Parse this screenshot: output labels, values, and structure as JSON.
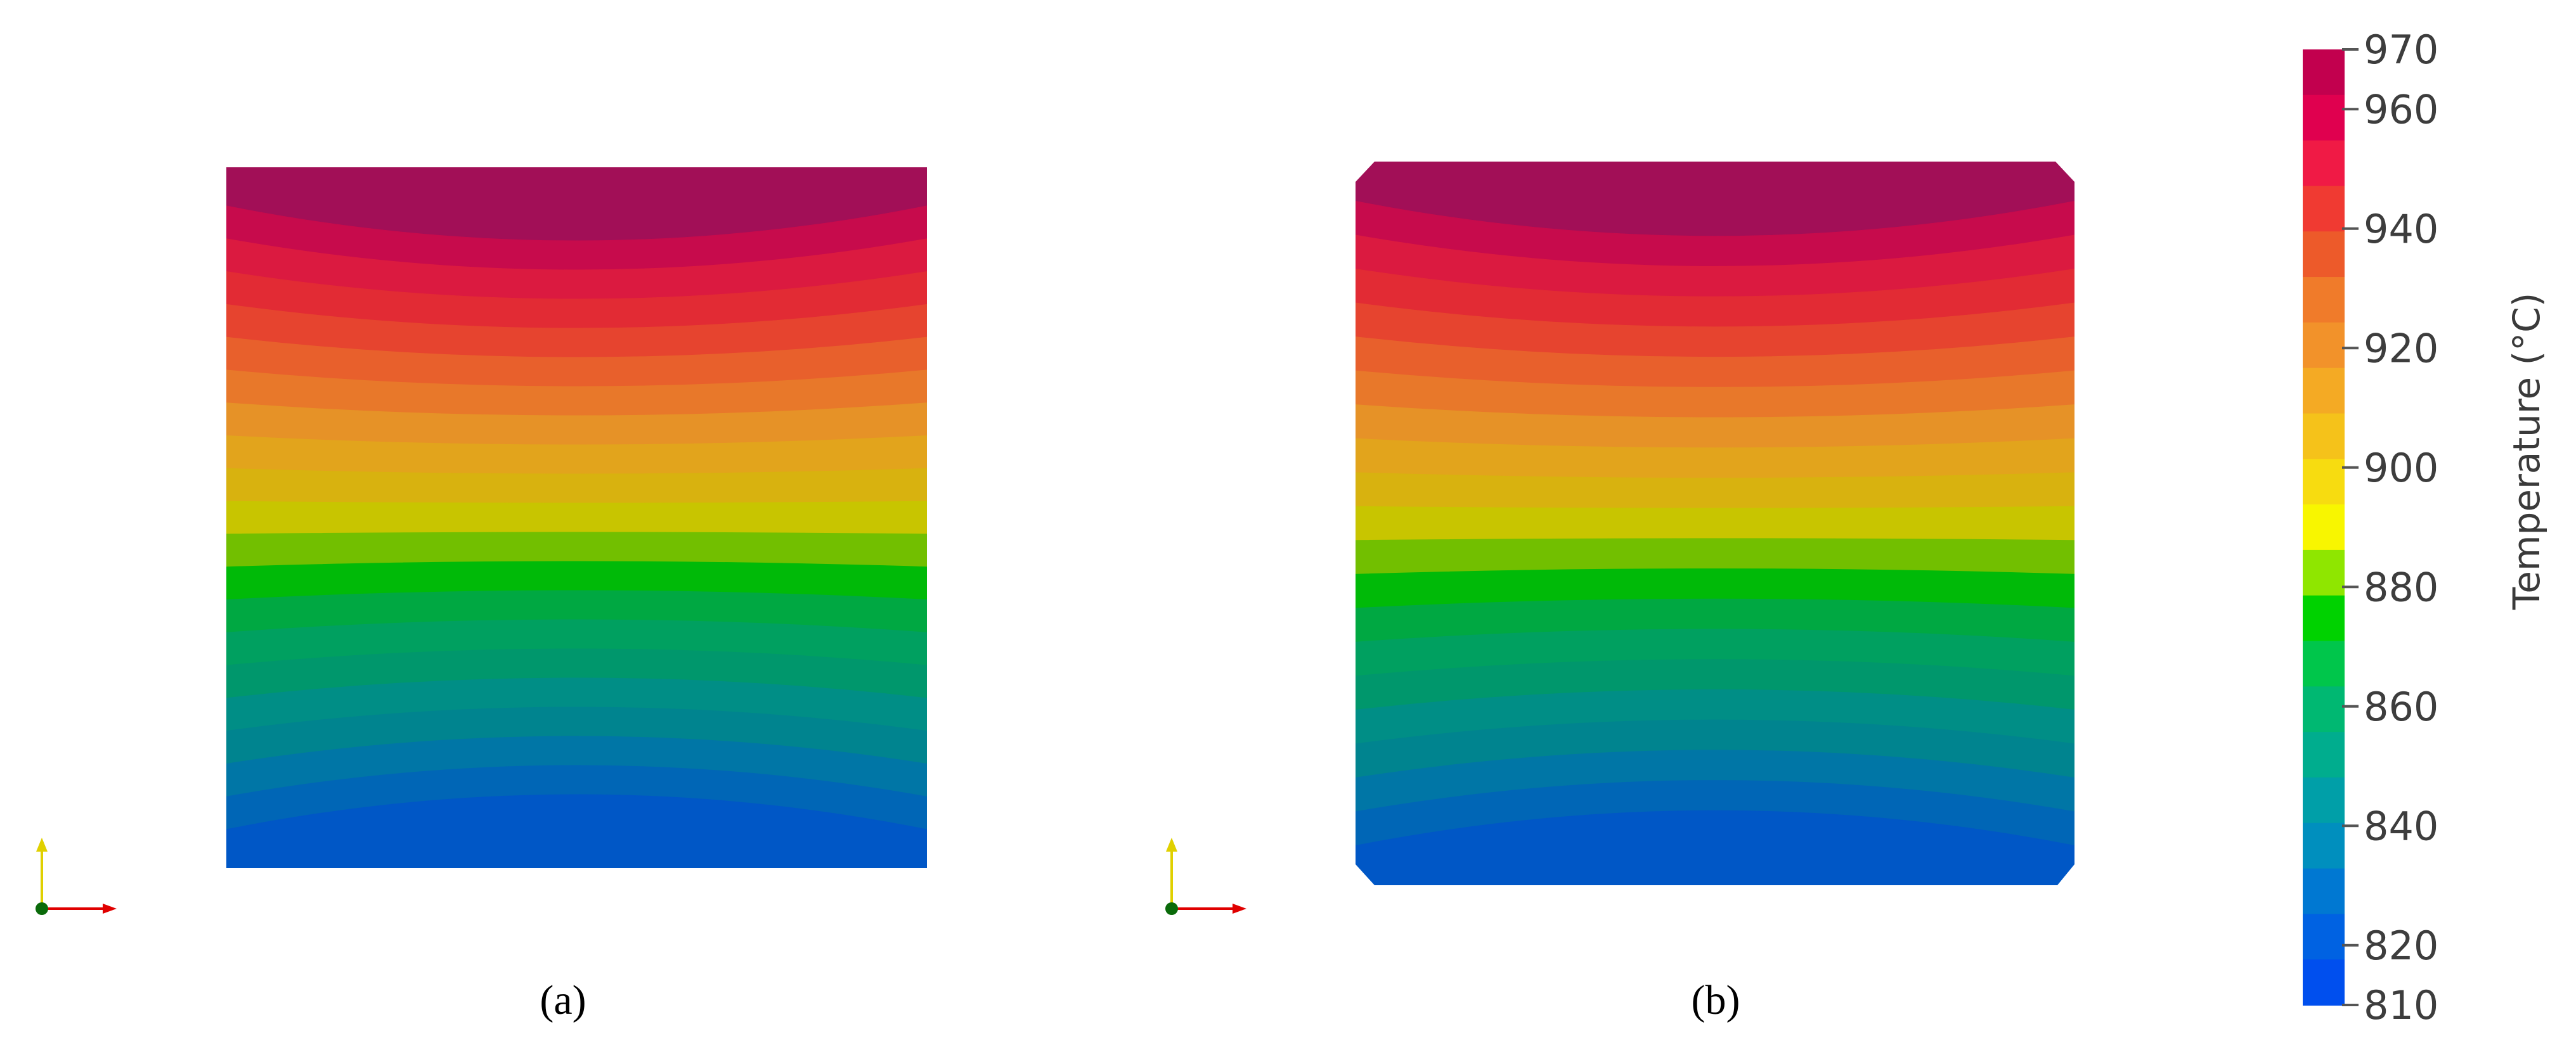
{
  "panels": [
    {
      "id": "a",
      "caption": "(a)",
      "shape": "square"
    },
    {
      "id": "b",
      "caption": "(b)",
      "shape": "chamfered"
    }
  ],
  "colorbar": {
    "title": "Temperature (°C)",
    "min": 810,
    "max": 970,
    "ticks": [
      "970",
      "960",
      "940",
      "920",
      "900",
      "880",
      "860",
      "840",
      "820",
      "810"
    ],
    "tick_values": [
      970,
      960,
      940,
      920,
      900,
      880,
      860,
      840,
      820,
      810
    ],
    "band_colors": [
      "#c2004e",
      "#e0004f",
      "#f01a45",
      "#f03a32",
      "#ed5a2a",
      "#f07b2a",
      "#f2922a",
      "#f4aa24",
      "#f5c21a",
      "#f7dc10",
      "#f8f600",
      "#8fe600",
      "#00d200",
      "#00c64b",
      "#00b872",
      "#00ad8e",
      "#009fa8",
      "#008fbe",
      "#0078d2",
      "#0062e2",
      "#004fee"
    ]
  },
  "contour_colors": [
    "#a20f57",
    "#c70b4c",
    "#db1a40",
    "#e22b34",
    "#e6442f",
    "#e8602c",
    "#e8782a",
    "#e69227",
    "#e2a41c",
    "#d8b20f",
    "#c8c500",
    "#72bf00",
    "#00ba08",
    "#00a842",
    "#00a060",
    "#00976c",
    "#008e86",
    "#00848f",
    "#0076a6",
    "#0066b6",
    "#0057c6"
  ],
  "axes_triad": {
    "x_color": "#e00000",
    "y_color": "#e0d000",
    "origin_color": "#0a6a0a"
  }
}
